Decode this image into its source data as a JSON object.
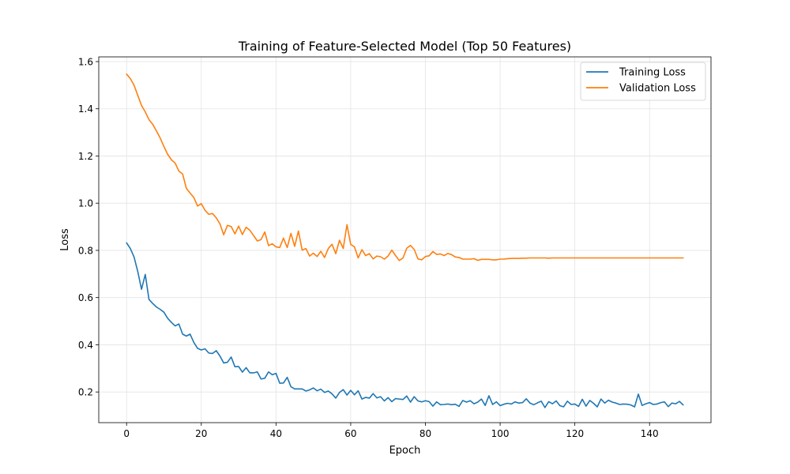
{
  "chart_data": {
    "type": "line",
    "title": "Training of Feature-Selected Model (Top 50 Features)",
    "xlabel": "Epoch",
    "ylabel": "Loss",
    "xlim": [
      -7.45,
      156.45
    ],
    "ylim": [
      0.07,
      1.62
    ],
    "xticks": [
      0,
      20,
      40,
      60,
      80,
      100,
      120,
      140
    ],
    "yticks": [
      0.2,
      0.4,
      0.6,
      0.8,
      1.0,
      1.2,
      1.4,
      1.6
    ],
    "xtick_labels": [
      "0",
      "20",
      "40",
      "60",
      "80",
      "100",
      "120",
      "140"
    ],
    "ytick_labels": [
      "0.2",
      "0.4",
      "0.6",
      "0.8",
      "1.0",
      "1.2",
      "1.4",
      "1.6"
    ],
    "grid": true,
    "legend": "top-right",
    "x_start": 0,
    "x_step": 1,
    "series": [
      {
        "name": "Training Loss",
        "color": "#1f77b4",
        "values": [
          0.832,
          0.808,
          0.772,
          0.71,
          0.635,
          0.698,
          0.592,
          0.575,
          0.56,
          0.55,
          0.538,
          0.512,
          0.495,
          0.48,
          0.488,
          0.445,
          0.437,
          0.445,
          0.41,
          0.385,
          0.378,
          0.383,
          0.365,
          0.363,
          0.375,
          0.352,
          0.323,
          0.326,
          0.348,
          0.307,
          0.308,
          0.284,
          0.303,
          0.281,
          0.281,
          0.285,
          0.255,
          0.258,
          0.285,
          0.273,
          0.279,
          0.237,
          0.238,
          0.262,
          0.222,
          0.213,
          0.213,
          0.213,
          0.204,
          0.209,
          0.217,
          0.205,
          0.212,
          0.198,
          0.204,
          0.192,
          0.174,
          0.198,
          0.21,
          0.187,
          0.207,
          0.188,
          0.205,
          0.17,
          0.177,
          0.174,
          0.193,
          0.175,
          0.18,
          0.162,
          0.176,
          0.159,
          0.172,
          0.17,
          0.168,
          0.183,
          0.157,
          0.18,
          0.162,
          0.158,
          0.163,
          0.159,
          0.14,
          0.158,
          0.146,
          0.147,
          0.149,
          0.146,
          0.148,
          0.139,
          0.164,
          0.157,
          0.163,
          0.15,
          0.157,
          0.17,
          0.143,
          0.184,
          0.147,
          0.158,
          0.142,
          0.148,
          0.152,
          0.149,
          0.158,
          0.153,
          0.155,
          0.171,
          0.153,
          0.146,
          0.154,
          0.161,
          0.134,
          0.159,
          0.15,
          0.162,
          0.142,
          0.137,
          0.161,
          0.147,
          0.149,
          0.139,
          0.169,
          0.14,
          0.164,
          0.152,
          0.137,
          0.17,
          0.153,
          0.165,
          0.157,
          0.153,
          0.147,
          0.149,
          0.148,
          0.145,
          0.137,
          0.191,
          0.143,
          0.15,
          0.155,
          0.147,
          0.149,
          0.155,
          0.158,
          0.138,
          0.153,
          0.15,
          0.16,
          0.145
        ]
      },
      {
        "name": "Validation Loss",
        "color": "#ff7f0e",
        "values": [
          1.547,
          1.528,
          1.5,
          1.457,
          1.414,
          1.387,
          1.354,
          1.334,
          1.306,
          1.276,
          1.24,
          1.207,
          1.184,
          1.17,
          1.136,
          1.124,
          1.063,
          1.043,
          1.024,
          0.988,
          0.998,
          0.97,
          0.953,
          0.956,
          0.938,
          0.912,
          0.866,
          0.906,
          0.901,
          0.87,
          0.903,
          0.867,
          0.898,
          0.885,
          0.863,
          0.84,
          0.846,
          0.878,
          0.82,
          0.828,
          0.815,
          0.812,
          0.852,
          0.812,
          0.872,
          0.817,
          0.882,
          0.801,
          0.808,
          0.776,
          0.788,
          0.774,
          0.796,
          0.77,
          0.808,
          0.826,
          0.786,
          0.843,
          0.808,
          0.909,
          0.825,
          0.815,
          0.768,
          0.803,
          0.778,
          0.786,
          0.764,
          0.776,
          0.773,
          0.763,
          0.776,
          0.801,
          0.778,
          0.757,
          0.768,
          0.809,
          0.821,
          0.804,
          0.764,
          0.76,
          0.774,
          0.777,
          0.795,
          0.783,
          0.785,
          0.778,
          0.787,
          0.782,
          0.772,
          0.77,
          0.763,
          0.763,
          0.763,
          0.765,
          0.758,
          0.762,
          0.762,
          0.762,
          0.76,
          0.76,
          0.763,
          0.763,
          0.765,
          0.766,
          0.766,
          0.766,
          0.767,
          0.767,
          0.768,
          0.768,
          0.768,
          0.768,
          0.768,
          0.767,
          0.768,
          0.768,
          0.768,
          0.768,
          0.768,
          0.768,
          0.768,
          0.768,
          0.768,
          0.768,
          0.768,
          0.768,
          0.768,
          0.768,
          0.768,
          0.768,
          0.768,
          0.768,
          0.768,
          0.768,
          0.768,
          0.768,
          0.768,
          0.768,
          0.768,
          0.768,
          0.768,
          0.768,
          0.768,
          0.768,
          0.768,
          0.768,
          0.768,
          0.768,
          0.768,
          0.768
        ]
      }
    ]
  }
}
